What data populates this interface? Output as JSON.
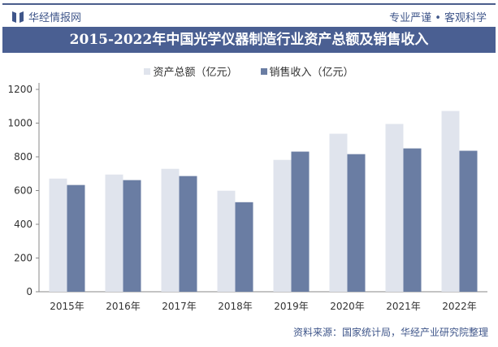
{
  "header": {
    "brand": "华经情报网",
    "slogan": "专业严谨 • 客观科学"
  },
  "colors": {
    "assets": "#e0e4ed",
    "sales": "#6a7da3",
    "title_bg": "#4a5f92"
  },
  "chart_data": {
    "type": "bar",
    "title": "2015-2022年中国光学仪器制造行业资产总额及销售收入",
    "categories": [
      "2015年",
      "2016年",
      "2017年",
      "2018年",
      "2019年",
      "2020年",
      "2021年",
      "2022年"
    ],
    "series": [
      {
        "name": "资产总额（亿元）",
        "values": [
          671,
          695,
          729,
          599,
          782,
          937,
          995,
          1072
        ]
      },
      {
        "name": "销售收入（亿元）",
        "values": [
          633,
          662,
          686,
          531,
          831,
          816,
          850,
          836
        ]
      }
    ],
    "ylim": [
      0,
      1200
    ],
    "yticks": [
      0,
      200,
      400,
      600,
      800,
      1000,
      1200
    ],
    "grid": false,
    "legend": "top-center"
  },
  "footer": {
    "source": "资料来源：国家统计局，华经产业研究院整理"
  }
}
